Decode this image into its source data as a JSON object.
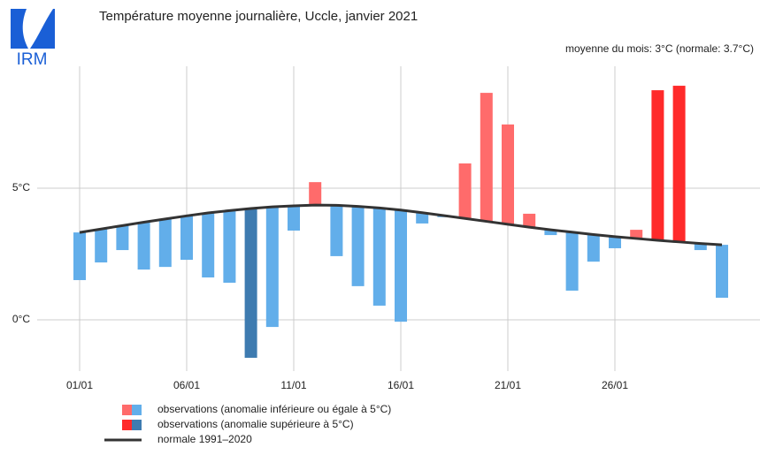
{
  "logo": "IRM",
  "chart_data": {
    "type": "range-bar",
    "title": "Température moyenne journalière, Uccle, janvier 2021",
    "subtitle": "moyenne du mois: 3°C (normale: 3.7°C)",
    "categories": [
      "01/01",
      null,
      null,
      null,
      null,
      "06/01",
      null,
      null,
      null,
      null,
      "11/01",
      null,
      null,
      null,
      null,
      "16/01",
      null,
      null,
      null,
      null,
      "21/01",
      null,
      null,
      null,
      null,
      "26/01",
      null,
      null,
      null,
      null,
      null
    ],
    "series": [
      {
        "name": "observations (anomalie inférieure ou égale à 5°C)",
        "colors": [
          "#ff6b6b",
          "#62aeea"
        ],
        "values": [
          1.51,
          2.18,
          2.65,
          1.91,
          2.01,
          2.28,
          1.61,
          1.41,
          null,
          -0.27,
          3.39,
          5.23,
          2.42,
          1.28,
          0.54,
          -0.07,
          3.66,
          3.9,
          5.94,
          8.62,
          7.42,
          4.03,
          3.22,
          1.11,
          2.21,
          2.72,
          3.42,
          null,
          null,
          2.65,
          0.84
        ]
      },
      {
        "name": "observations (anomalie supérieure à 5°C)",
        "colors": [
          "#ff2a2a",
          "#3e7bb0"
        ],
        "values": [
          null,
          null,
          null,
          null,
          null,
          null,
          null,
          null,
          -1.44,
          null,
          null,
          null,
          null,
          null,
          null,
          null,
          null,
          null,
          null,
          null,
          null,
          null,
          null,
          null,
          null,
          null,
          null,
          8.72,
          8.89,
          null,
          null
        ]
      },
      {
        "name": "normale 1991–2020",
        "color": "#333333",
        "values": [
          3.32,
          3.45,
          3.58,
          3.71,
          3.83,
          3.95,
          4.06,
          4.15,
          4.23,
          4.29,
          4.33,
          4.36,
          4.35,
          4.31,
          4.25,
          4.17,
          4.07,
          3.96,
          3.85,
          3.74,
          3.63,
          3.52,
          3.42,
          3.33,
          3.24,
          3.16,
          3.09,
          3.02,
          2.96,
          2.9,
          2.85
        ]
      }
    ],
    "ylim": [
      -2.28,
      9.63
    ],
    "yticks": [
      {
        "value": 0,
        "label": "0°C"
      },
      {
        "value": 5,
        "label": "5°C"
      }
    ],
    "grid": true
  }
}
